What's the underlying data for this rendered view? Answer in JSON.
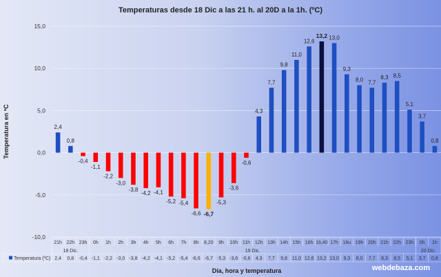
{
  "chart_data": {
    "type": "bar",
    "title": "Temperaturas desde 18 Dic a las 21 h. al 20D a la 1h. (ºC)",
    "xlabel": "Día, hora y temperatura",
    "ylabel": "Temperatura en ºC",
    "ylim": [
      -10,
      15
    ],
    "yticks": [
      "15,0",
      "10,0",
      "5,0",
      "0,0",
      "-5,0",
      "-10,0"
    ],
    "ytick_values": [
      15,
      10,
      5,
      0,
      -5,
      -10
    ],
    "grid": true,
    "categories": [
      "21h",
      "22h",
      "23h",
      "0h",
      "1h",
      "2h",
      "3h",
      "4h",
      "5h",
      "6h",
      "7h",
      "8h",
      "8,20",
      "9h",
      "10h",
      "11h",
      "12h",
      "13h",
      "14h",
      "15h",
      "16h",
      "16,40",
      "17h",
      "18u",
      "19h",
      "20h",
      "21h",
      "22h",
      "23h",
      "0h",
      "1h"
    ],
    "groups": [
      {
        "label": "18 Dic.",
        "start": 0,
        "end": 2
      },
      {
        "label": "19 Dic.",
        "start": 3,
        "end": 28
      },
      {
        "label": "20 Dic.",
        "start": 29,
        "end": 30
      }
    ],
    "series": [
      {
        "name": "Temperatura (ºC)",
        "values": [
          2.4,
          0.8,
          -0.4,
          -1.1,
          -2.2,
          -3.0,
          -3.8,
          -4.2,
          -4.1,
          -5.2,
          -5.4,
          -6.6,
          -6.7,
          -5.3,
          -3.6,
          -0.6,
          4.3,
          7.7,
          9.8,
          11.0,
          12.6,
          13.2,
          13.0,
          9.3,
          8.0,
          7.7,
          8.3,
          8.5,
          5.1,
          3.7,
          0.8
        ]
      }
    ],
    "colors": {
      "positive": "#1f4fc0",
      "negative": "#ff0000",
      "min": "#ffb000",
      "max": "#0a1040"
    }
  },
  "watermark": "webdebaza.com"
}
